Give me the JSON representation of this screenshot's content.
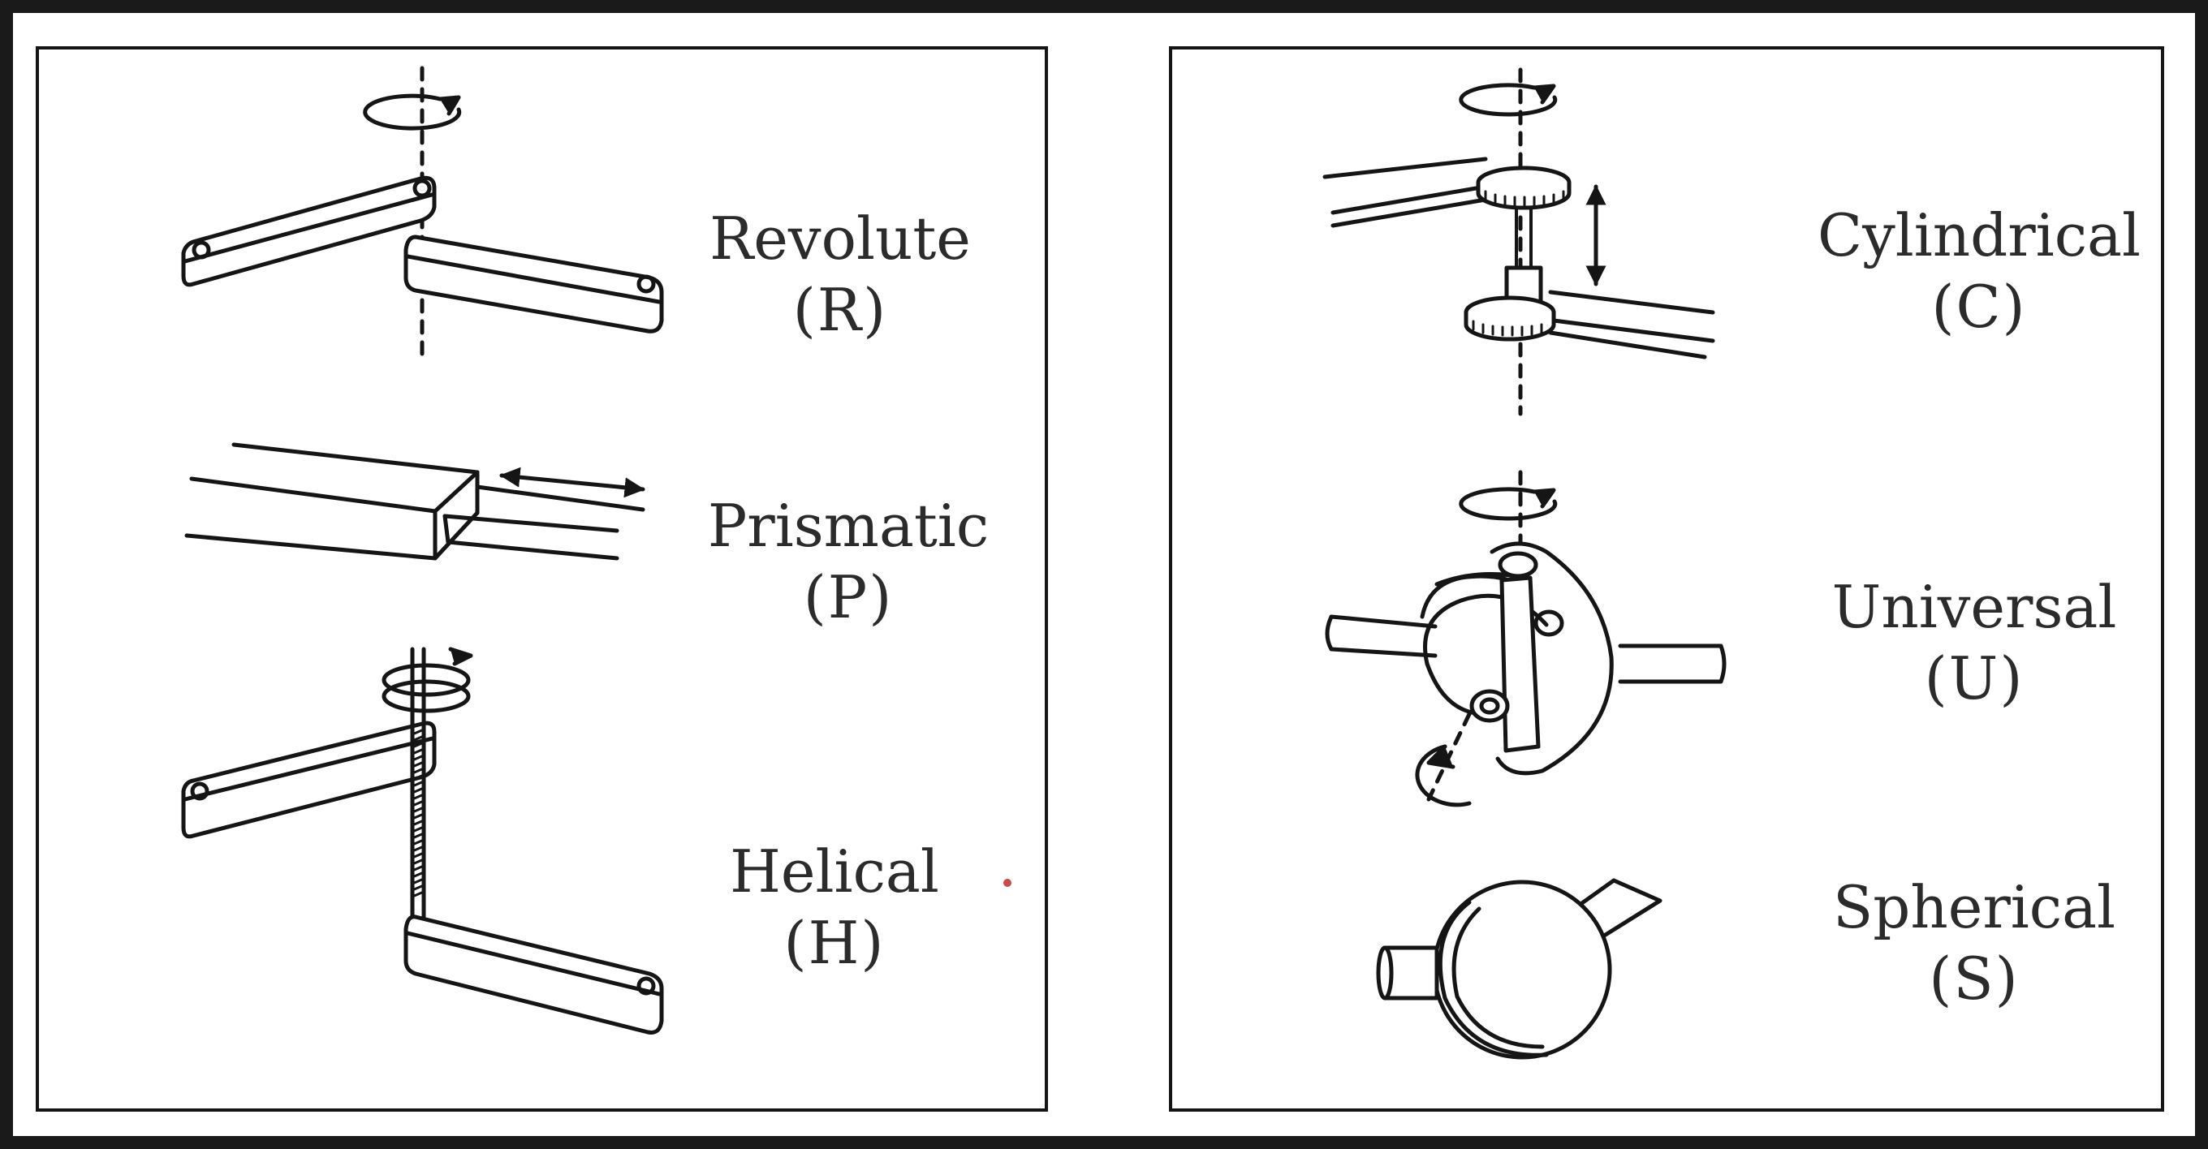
{
  "joints": {
    "revolute": {
      "name": "Revolute",
      "symbol": "(R)"
    },
    "prismatic": {
      "name": "Prismatic",
      "symbol": "(P)"
    },
    "helical": {
      "name": "Helical",
      "symbol": "(H)"
    },
    "cylindrical": {
      "name": "Cylindrical",
      "symbol": "(C)"
    },
    "universal": {
      "name": "Universal",
      "symbol": "(U)"
    },
    "spherical": {
      "name": "Spherical",
      "symbol": "(S)"
    }
  },
  "colors": {
    "frame": "#1a1a1a",
    "background": "#ffffff",
    "ink": "#151515",
    "laser_pointer": "#c94a4a"
  }
}
